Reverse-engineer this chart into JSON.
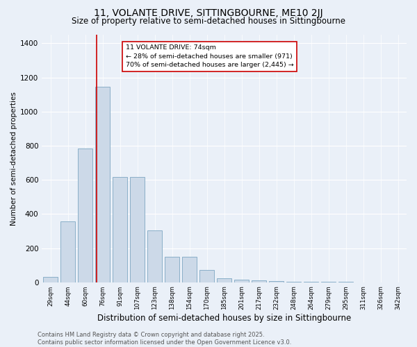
{
  "title": "11, VOLANTE DRIVE, SITTINGBOURNE, ME10 2JJ",
  "subtitle": "Size of property relative to semi-detached houses in Sittingbourne",
  "xlabel": "Distribution of semi-detached houses by size in Sittingbourne",
  "ylabel": "Number of semi-detached properties",
  "categories": [
    "29sqm",
    "44sqm",
    "60sqm",
    "76sqm",
    "91sqm",
    "107sqm",
    "123sqm",
    "138sqm",
    "154sqm",
    "170sqm",
    "185sqm",
    "201sqm",
    "217sqm",
    "232sqm",
    "248sqm",
    "264sqm",
    "279sqm",
    "295sqm",
    "311sqm",
    "326sqm",
    "342sqm"
  ],
  "values": [
    30,
    355,
    785,
    1145,
    615,
    615,
    305,
    150,
    150,
    70,
    25,
    15,
    10,
    5,
    2,
    2,
    1,
    1,
    0,
    0,
    0
  ],
  "bar_color": "#ccd9e8",
  "bar_edge_color": "#8aafc8",
  "vline_x": 2.65,
  "vline_color": "#cc0000",
  "annotation_smaller": "← 28% of semi-detached houses are smaller (971)",
  "annotation_larger": "70% of semi-detached houses are larger (2,445) →",
  "marker_label": "11 VOLANTE DRIVE: 74sqm",
  "annotation_box_edge": "#cc0000",
  "ylim": [
    0,
    1450
  ],
  "background_color": "#eaf0f8",
  "footer": "Contains HM Land Registry data © Crown copyright and database right 2025.\nContains public sector information licensed under the Open Government Licence v3.0.",
  "title_fontsize": 10,
  "subtitle_fontsize": 8.5,
  "xlabel_fontsize": 8.5,
  "ylabel_fontsize": 7.5,
  "footer_fontsize": 6
}
